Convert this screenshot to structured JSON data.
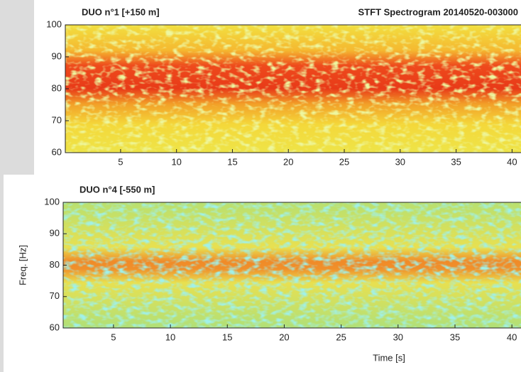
{
  "title": "STFT Spectrogram 20140520-003000",
  "chart_data": [
    {
      "type": "spectrogram",
      "title": "DUO n°1 [+150 m]",
      "style": "strong",
      "xlim": [
        0,
        40.8
      ],
      "ylim": [
        60,
        100
      ],
      "xticks": [
        5,
        10,
        15,
        20,
        25,
        30,
        35,
        40
      ],
      "yticks": [
        60,
        70,
        80,
        90,
        100
      ]
    },
    {
      "type": "spectrogram",
      "title": "DUO n°4 [-550 m]",
      "style": "weak",
      "xlabel": "Time [s]",
      "ylabel": "Freq. [Hz]",
      "xlim": [
        0,
        40.8
      ],
      "ylim": [
        60,
        100
      ],
      "xticks": [
        5,
        10,
        15,
        20,
        25,
        30,
        35,
        40
      ],
      "yticks": [
        60,
        70,
        80,
        90,
        100
      ]
    }
  ]
}
